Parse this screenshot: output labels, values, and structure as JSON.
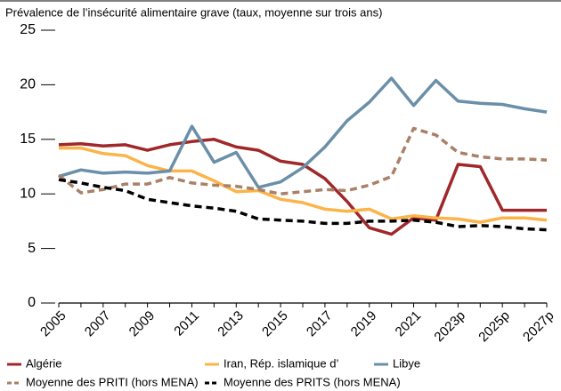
{
  "chart_data": {
    "type": "line",
    "title": "Prévalence de l’insécurité alimentaire grave (taux, moyenne sur trois ans)",
    "categories": [
      "2005",
      null,
      "2007",
      null,
      "2009",
      null,
      "2011",
      null,
      "2013",
      null,
      "2015",
      null,
      "2017",
      null,
      "2019",
      null,
      "2021",
      null,
      "2023p",
      null,
      "2025p",
      null,
      "2027p"
    ],
    "ylim": [
      0,
      25
    ],
    "yticks": [
      0,
      5,
      10,
      15,
      20,
      25
    ],
    "series": [
      {
        "name": "Algérie",
        "color": "#a0282a",
        "dashed": false,
        "values": [
          14.5,
          14.6,
          14.4,
          14.5,
          14.0,
          14.5,
          14.8,
          15.0,
          14.3,
          14.0,
          13.0,
          12.7,
          11.4,
          9.3,
          6.9,
          6.3,
          7.8,
          7.6,
          12.7,
          12.5,
          8.5,
          8.5,
          8.5
        ]
      },
      {
        "name": "Iran, Rép. islamique d’",
        "color": "#fbb44a",
        "dashed": false,
        "values": [
          14.2,
          14.2,
          13.7,
          13.5,
          12.6,
          12.1,
          12.1,
          11.2,
          10.2,
          10.3,
          9.5,
          9.2,
          8.6,
          8.4,
          8.6,
          7.7,
          8.0,
          7.8,
          7.7,
          7.4,
          7.8,
          7.8,
          7.6
        ]
      },
      {
        "name": "Libye",
        "color": "#6a8fa8",
        "dashed": false,
        "values": [
          11.6,
          12.2,
          11.9,
          12.0,
          11.9,
          12.1,
          16.2,
          12.9,
          13.8,
          10.6,
          11.1,
          12.4,
          14.3,
          16.7,
          18.4,
          20.6,
          18.1,
          20.4,
          18.5,
          18.3,
          18.2,
          17.8,
          17.5
        ]
      },
      {
        "name": "Moyenne des PRITI (hors MENA)",
        "color": "#a98068",
        "dashed": true,
        "values": [
          11.7,
          10.1,
          10.4,
          10.9,
          10.9,
          11.5,
          11.0,
          10.8,
          10.7,
          10.4,
          10.0,
          10.2,
          10.4,
          10.3,
          10.8,
          11.6,
          16.0,
          15.4,
          13.8,
          13.4,
          13.2,
          13.2,
          13.1
        ]
      },
      {
        "name": "Moyenne des PRITS (hors MENA)",
        "color": "#000000",
        "dashed": true,
        "values": [
          11.3,
          11.0,
          10.6,
          10.3,
          9.5,
          9.2,
          8.9,
          8.7,
          8.4,
          7.7,
          7.6,
          7.5,
          7.3,
          7.3,
          7.5,
          7.5,
          7.6,
          7.4,
          7.0,
          7.1,
          7.0,
          6.8,
          6.7
        ]
      }
    ]
  }
}
